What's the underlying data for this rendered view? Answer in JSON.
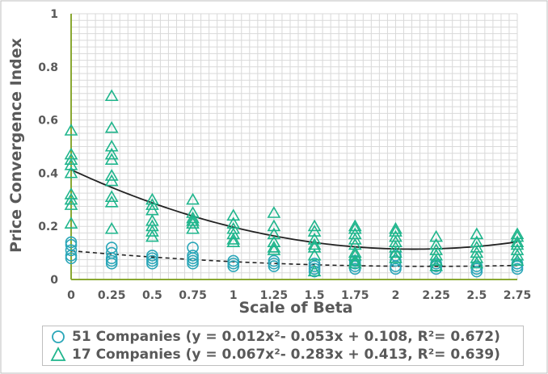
{
  "chart_data": {
    "type": "scatter",
    "xlabel": "Scale of Beta",
    "ylabel": "Price Convergence Index",
    "xlim": [
      0,
      2.75
    ],
    "ylim": [
      0,
      1
    ],
    "x_ticks": [
      "0",
      "0.25",
      "0.5",
      "0.75",
      "1",
      "1.25",
      "1.5",
      "1.75",
      "2",
      "2.25",
      "2.5",
      "2.75"
    ],
    "y_ticks": [
      "0",
      "0.2",
      "0.4",
      "0.6",
      "0.8",
      "1"
    ],
    "grid": true,
    "legend_position": "bottom",
    "series": [
      {
        "name": "51 Companies (y = 0.012x²- 0.053x + 0.108, R²= 0.672)",
        "marker": "circle",
        "color": "#2aa6b8",
        "trendline": {
          "coefficients": [
            0.012,
            -0.053,
            0.108
          ],
          "style": "dashed",
          "color": "#222222"
        },
        "points": [
          [
            0,
            0.14
          ],
          [
            0,
            0.13
          ],
          [
            0,
            0.11
          ],
          [
            0,
            0.09
          ],
          [
            0,
            0.08
          ],
          [
            0.25,
            0.12
          ],
          [
            0.25,
            0.1
          ],
          [
            0.25,
            0.08
          ],
          [
            0.25,
            0.07
          ],
          [
            0.25,
            0.06
          ],
          [
            0.5,
            0.09
          ],
          [
            0.5,
            0.08
          ],
          [
            0.5,
            0.07
          ],
          [
            0.5,
            0.06
          ],
          [
            0.75,
            0.12
          ],
          [
            0.75,
            0.09
          ],
          [
            0.75,
            0.08
          ],
          [
            0.75,
            0.07
          ],
          [
            0.75,
            0.06
          ],
          [
            1,
            0.07
          ],
          [
            1,
            0.06
          ],
          [
            1,
            0.05
          ],
          [
            1.25,
            0.07
          ],
          [
            1.25,
            0.06
          ],
          [
            1.25,
            0.05
          ],
          [
            1.5,
            0.06
          ],
          [
            1.5,
            0.05
          ],
          [
            1.5,
            0.04
          ],
          [
            1.5,
            0.03
          ],
          [
            1.75,
            0.07
          ],
          [
            1.75,
            0.06
          ],
          [
            1.75,
            0.05
          ],
          [
            1.75,
            0.04
          ],
          [
            2,
            0.09
          ],
          [
            2,
            0.07
          ],
          [
            2,
            0.05
          ],
          [
            2,
            0.04
          ],
          [
            2.25,
            0.06
          ],
          [
            2.25,
            0.05
          ],
          [
            2.25,
            0.04
          ],
          [
            2.5,
            0.05
          ],
          [
            2.5,
            0.04
          ],
          [
            2.5,
            0.03
          ],
          [
            2.75,
            0.06
          ],
          [
            2.75,
            0.05
          ],
          [
            2.75,
            0.04
          ]
        ]
      },
      {
        "name": "17 Companies (y = 0.067x²- 0.283x + 0.413, R²= 0.639)",
        "marker": "triangle",
        "color": "#1fb58c",
        "trendline": {
          "coefficients": [
            0.067,
            -0.283,
            0.413
          ],
          "style": "solid",
          "color": "#222222"
        },
        "points": [
          [
            0,
            0.56
          ],
          [
            0,
            0.47
          ],
          [
            0,
            0.45
          ],
          [
            0,
            0.43
          ],
          [
            0,
            0.4
          ],
          [
            0,
            0.32
          ],
          [
            0,
            0.3
          ],
          [
            0,
            0.28
          ],
          [
            0,
            0.21
          ],
          [
            0.25,
            0.69
          ],
          [
            0.25,
            0.57
          ],
          [
            0.25,
            0.5
          ],
          [
            0.25,
            0.47
          ],
          [
            0.25,
            0.45
          ],
          [
            0.25,
            0.39
          ],
          [
            0.25,
            0.37
          ],
          [
            0.25,
            0.31
          ],
          [
            0.25,
            0.29
          ],
          [
            0.25,
            0.19
          ],
          [
            0.5,
            0.3
          ],
          [
            0.5,
            0.28
          ],
          [
            0.5,
            0.26
          ],
          [
            0.5,
            0.22
          ],
          [
            0.5,
            0.2
          ],
          [
            0.5,
            0.18
          ],
          [
            0.5,
            0.16
          ],
          [
            0.75,
            0.3
          ],
          [
            0.75,
            0.25
          ],
          [
            0.75,
            0.23
          ],
          [
            0.75,
            0.22
          ],
          [
            0.75,
            0.21
          ],
          [
            0.75,
            0.19
          ],
          [
            1,
            0.24
          ],
          [
            1,
            0.21
          ],
          [
            1,
            0.19
          ],
          [
            1,
            0.17
          ],
          [
            1,
            0.15
          ],
          [
            1,
            0.14
          ],
          [
            1.25,
            0.25
          ],
          [
            1.25,
            0.2
          ],
          [
            1.25,
            0.17
          ],
          [
            1.25,
            0.14
          ],
          [
            1.25,
            0.12
          ],
          [
            1.25,
            0.11
          ],
          [
            1.5,
            0.2
          ],
          [
            1.5,
            0.18
          ],
          [
            1.5,
            0.15
          ],
          [
            1.5,
            0.13
          ],
          [
            1.5,
            0.12
          ],
          [
            1.5,
            0.09
          ],
          [
            1.5,
            0.03
          ],
          [
            1.75,
            0.2
          ],
          [
            1.75,
            0.19
          ],
          [
            1.75,
            0.17
          ],
          [
            1.75,
            0.15
          ],
          [
            1.75,
            0.13
          ],
          [
            1.75,
            0.1
          ],
          [
            1.75,
            0.09
          ],
          [
            1.75,
            0.07
          ],
          [
            1.75,
            0.06
          ],
          [
            2,
            0.19
          ],
          [
            2,
            0.18
          ],
          [
            2,
            0.16
          ],
          [
            2,
            0.14
          ],
          [
            2,
            0.12
          ],
          [
            2,
            0.1
          ],
          [
            2,
            0.08
          ],
          [
            2.25,
            0.16
          ],
          [
            2.25,
            0.13
          ],
          [
            2.25,
            0.11
          ],
          [
            2.25,
            0.09
          ],
          [
            2.25,
            0.07
          ],
          [
            2.25,
            0.05
          ],
          [
            2.5,
            0.17
          ],
          [
            2.5,
            0.14
          ],
          [
            2.5,
            0.12
          ],
          [
            2.5,
            0.1
          ],
          [
            2.5,
            0.08
          ],
          [
            2.5,
            0.06
          ],
          [
            2.75,
            0.17
          ],
          [
            2.75,
            0.16
          ],
          [
            2.75,
            0.14
          ],
          [
            2.75,
            0.13
          ],
          [
            2.75,
            0.11
          ],
          [
            2.75,
            0.09
          ],
          [
            2.75,
            0.07
          ]
        ]
      }
    ]
  }
}
